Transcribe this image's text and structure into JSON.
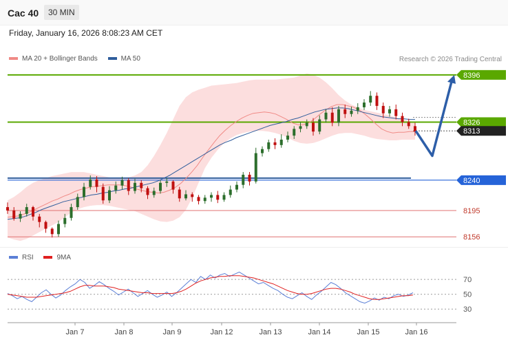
{
  "header": {
    "symbol": "Cac 40",
    "timeframe": "30 MIN"
  },
  "timestamp": "Friday, January 16, 2026 8:08:23 AM CET",
  "legend": [
    {
      "label": "MA 20 + Bollinger Bands",
      "color": "#f08a86"
    },
    {
      "label": "MA 50",
      "color": "#2f5d9c"
    }
  ],
  "credit": "Research © 2026 Trading Central",
  "rsi_legend": [
    {
      "label": "RSI",
      "color": "#5b7fd6"
    },
    {
      "label": "9MA",
      "color": "#e02020"
    }
  ],
  "colors": {
    "resistance": "#5aa800",
    "support": "#2563d8",
    "pivot": "#222222",
    "target": "#e07070",
    "up": "#2c6e2c",
    "down": "#c01010",
    "forecast": "#2d5ea8"
  },
  "chart_data": [
    {
      "type": "candlestick",
      "title": "",
      "xlabel": "",
      "ylabel": "",
      "ylim": [
        8145,
        8405
      ],
      "x_ticks": [
        "Jan 7",
        "Jan 8",
        "Jan 9",
        "Jan 12",
        "Jan 13",
        "Jan 14",
        "Jan 15",
        "Jan 16"
      ],
      "levels": [
        {
          "value": 8396,
          "label": "8396",
          "kind": "resistance"
        },
        {
          "value": 8326,
          "label": "8326",
          "kind": "resistance"
        },
        {
          "value": 8313,
          "label": "8313",
          "kind": "pivot"
        },
        {
          "value": 8240,
          "label": "8240",
          "kind": "support"
        },
        {
          "value": 8195,
          "label": "8195",
          "kind": "target"
        },
        {
          "value": 8156,
          "label": "8156",
          "kind": "target"
        }
      ],
      "series": [
        {
          "name": "MA 20",
          "values": [
            8185,
            8186,
            8187,
            8190,
            8193,
            8197,
            8201,
            8205,
            8209,
            8212,
            8216,
            8219,
            8223,
            8226,
            8228,
            8230,
            8231,
            8232,
            8233,
            8233,
            8233,
            8232,
            8230,
            8227,
            8225,
            8223,
            8222,
            8221,
            8222,
            8225,
            8229,
            8235,
            8243,
            8252,
            8262,
            8274,
            8285,
            8296,
            8306,
            8314,
            8321,
            8327,
            8332,
            8336,
            8339,
            8340,
            8341,
            8340,
            8338,
            8334,
            8330,
            8325,
            8322,
            8322,
            8325,
            8331,
            8338,
            8344,
            8349,
            8352,
            8352,
            8350,
            8348,
            8344,
            8338,
            8331,
            8323,
            8316,
            8312,
            8310,
            8311,
            8311,
            8312,
            8312
          ]
        },
        {
          "name": "MA 50",
          "values": [
            8182,
            8183,
            8184,
            8186,
            8189,
            8192,
            8196,
            8199,
            8202,
            8205,
            8208,
            8210,
            8212,
            8214,
            8216,
            8218,
            8219,
            8221,
            8222,
            8224,
            8225,
            8227,
            8228,
            8230,
            8232,
            8234,
            8236,
            8239,
            8243,
            8247,
            8252,
            8257,
            8262,
            8267,
            8272,
            8277,
            8282,
            8287,
            8292,
            8296,
            8299,
            8303,
            8306,
            8309,
            8312,
            8315,
            8318,
            8321,
            8323,
            8325,
            8327,
            8330,
            8332,
            8335,
            8338,
            8341,
            8343,
            8345,
            8346,
            8347,
            8347,
            8346,
            8344,
            8342,
            8340,
            8338,
            8336,
            8334,
            8333,
            8332,
            8331,
            8331,
            8330,
            8330
          ]
        },
        {
          "name": "Bollinger Upper",
          "values": [
            8210,
            8215,
            8222,
            8230,
            8236,
            8240,
            8243,
            8246,
            8248,
            8250,
            8252,
            8252,
            8252,
            8250,
            8248,
            8246,
            8244,
            8243,
            8243,
            8244,
            8247,
            8252,
            8262,
            8276,
            8292,
            8310,
            8330,
            8350,
            8363,
            8370,
            8374,
            8377,
            8380,
            8381,
            8382,
            8383,
            8384,
            8386,
            8388,
            8389,
            8389,
            8389,
            8389,
            8390,
            8391,
            8392,
            8395,
            8398,
            8396,
            8392,
            8385,
            8376,
            8366,
            8358,
            8352,
            8348,
            8344,
            8342,
            8340,
            8338,
            8336,
            8333,
            8330,
            8328,
            8326
          ]
        },
        {
          "name": "Bollinger Lower",
          "values": [
            8155,
            8152,
            8150,
            8153,
            8158,
            8163,
            8168,
            8173,
            8178,
            8185,
            8192,
            8197,
            8200,
            8202,
            8203,
            8203,
            8202,
            8200,
            8198,
            8196,
            8194,
            8190,
            8186,
            8182,
            8179,
            8178,
            8180,
            8185,
            8196,
            8214,
            8236,
            8258,
            8273,
            8285,
            8295,
            8302,
            8307,
            8310,
            8312,
            8313,
            8313,
            8312,
            8310,
            8307,
            8303,
            8298,
            8295,
            8294,
            8295,
            8298,
            8302,
            8306,
            8309,
            8310,
            8310,
            8308,
            8306,
            8303,
            8301,
            8300,
            8299,
            8299,
            8300,
            8300,
            8300
          ]
        },
        {
          "name": "Forecast",
          "points": [
            [
              8313,
              0
            ],
            [
              8276,
              1
            ],
            [
              8396,
              2
            ]
          ]
        }
      ],
      "candles": [
        [
          8200,
          8195,
          8207,
          8190
        ],
        [
          8195,
          8183,
          8200,
          8180
        ],
        [
          8183,
          8190,
          8194,
          8178
        ],
        [
          8190,
          8200,
          8205,
          8186
        ],
        [
          8200,
          8186,
          8202,
          8180
        ],
        [
          8186,
          8178,
          8190,
          8170
        ],
        [
          8178,
          8168,
          8180,
          8162
        ],
        [
          8168,
          8160,
          8170,
          8155
        ],
        [
          8160,
          8175,
          8180,
          8156
        ],
        [
          8175,
          8184,
          8190,
          8170
        ],
        [
          8184,
          8200,
          8205,
          8180
        ],
        [
          8200,
          8215,
          8220,
          8196
        ],
        [
          8215,
          8230,
          8236,
          8210
        ],
        [
          8230,
          8241,
          8247,
          8226
        ],
        [
          8241,
          8230,
          8246,
          8222
        ],
        [
          8230,
          8210,
          8235,
          8205
        ],
        [
          8210,
          8225,
          8231,
          8206
        ],
        [
          8225,
          8232,
          8238,
          8220
        ],
        [
          8232,
          8240,
          8245,
          8226
        ],
        [
          8240,
          8224,
          8243,
          8218
        ],
        [
          8224,
          8236,
          8242,
          8220
        ],
        [
          8236,
          8228,
          8240,
          8222
        ],
        [
          8228,
          8218,
          8231,
          8212
        ],
        [
          8218,
          8224,
          8229,
          8214
        ],
        [
          8224,
          8236,
          8240,
          8220
        ],
        [
          8236,
          8238,
          8243,
          8230
        ],
        [
          8238,
          8226,
          8240,
          8220
        ],
        [
          8226,
          8213,
          8230,
          8208
        ],
        [
          8213,
          8219,
          8225,
          8210
        ],
        [
          8219,
          8215,
          8222,
          8208
        ],
        [
          8215,
          8209,
          8218,
          8204
        ],
        [
          8209,
          8214,
          8218,
          8205
        ],
        [
          8214,
          8218,
          8222,
          8208
        ],
        [
          8218,
          8211,
          8224,
          8206
        ],
        [
          8211,
          8218,
          8222,
          8208
        ],
        [
          8218,
          8226,
          8232,
          8214
        ],
        [
          8226,
          8233,
          8238,
          8222
        ],
        [
          8233,
          8248,
          8252,
          8228
        ],
        [
          8248,
          8238,
          8252,
          8232
        ],
        [
          8238,
          8280,
          8288,
          8235
        ],
        [
          8280,
          8286,
          8290,
          8275
        ],
        [
          8286,
          8296,
          8300,
          8282
        ],
        [
          8296,
          8292,
          8302,
          8286
        ],
        [
          8292,
          8300,
          8308,
          8288
        ],
        [
          8300,
          8306,
          8312,
          8296
        ],
        [
          8306,
          8316,
          8320,
          8301
        ],
        [
          8316,
          8320,
          8326,
          8311
        ],
        [
          8320,
          8325,
          8330,
          8316
        ],
        [
          8325,
          8312,
          8332,
          8306
        ],
        [
          8312,
          8330,
          8336,
          8308
        ],
        [
          8330,
          8340,
          8345,
          8325
        ],
        [
          8340,
          8325,
          8348,
          8320
        ],
        [
          8325,
          8345,
          8350,
          8320
        ],
        [
          8345,
          8338,
          8352,
          8332
        ],
        [
          8338,
          8343,
          8349,
          8334
        ],
        [
          8343,
          8348,
          8354,
          8338
        ],
        [
          8348,
          8355,
          8360,
          8344
        ],
        [
          8355,
          8365,
          8372,
          8350
        ],
        [
          8365,
          8350,
          8370,
          8344
        ],
        [
          8350,
          8339,
          8355,
          8332
        ],
        [
          8339,
          8345,
          8350,
          8334
        ],
        [
          8345,
          8335,
          8352,
          8330
        ],
        [
          8335,
          8326,
          8340,
          8320
        ],
        [
          8326,
          8320,
          8331,
          8316
        ],
        [
          8320,
          8312,
          8325,
          8306
        ]
      ]
    },
    {
      "type": "line",
      "title": "",
      "xlabel": "",
      "ylabel": "",
      "ylim": [
        20,
        85
      ],
      "y_ticks": [
        70,
        50,
        30
      ],
      "series": [
        {
          "name": "RSI",
          "values": [
            51,
            48,
            44,
            47,
            43,
            40,
            46,
            52,
            56,
            50,
            45,
            49,
            55,
            60,
            64,
            70,
            66,
            58,
            62,
            67,
            63,
            58,
            54,
            49,
            53,
            57,
            52,
            47,
            51,
            55,
            50,
            46,
            49,
            53,
            47,
            52,
            58,
            64,
            70,
            66,
            74,
            70,
            76,
            72,
            76,
            78,
            74,
            77,
            80,
            76,
            72,
            68,
            64,
            66,
            62,
            58,
            55,
            50,
            46,
            44,
            48,
            52,
            47,
            43,
            49,
            54,
            60,
            66,
            63,
            58,
            52,
            48,
            44,
            40,
            38,
            41,
            45,
            42,
            46,
            44,
            48,
            50,
            47,
            49,
            52
          ]
        },
        {
          "name": "9MA",
          "values": [
            50,
            49,
            48,
            47,
            46,
            46,
            46,
            47,
            48,
            49,
            50,
            51,
            52,
            54,
            57,
            60,
            62,
            62,
            61,
            61,
            61,
            60,
            59,
            57,
            56,
            55,
            54,
            53,
            52,
            52,
            51,
            51,
            51,
            51,
            51,
            52,
            54,
            57,
            61,
            65,
            68,
            70,
            72,
            73,
            74,
            74,
            75,
            75,
            75,
            74,
            73,
            72,
            70,
            68,
            66,
            64,
            61,
            58,
            55,
            53,
            51,
            50,
            50,
            51,
            53,
            55,
            57,
            58,
            58,
            57,
            55,
            53,
            50,
            48,
            46,
            44,
            43,
            43,
            44,
            45,
            46,
            47,
            48,
            48,
            49
          ]
        }
      ]
    }
  ]
}
